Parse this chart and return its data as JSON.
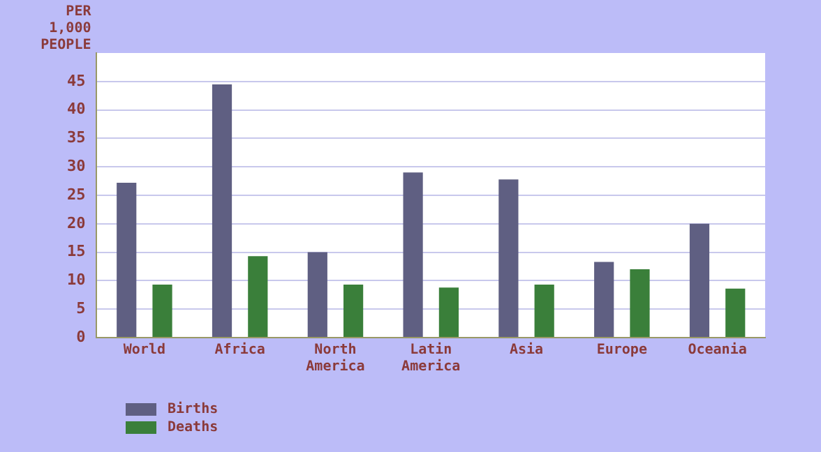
{
  "chart_data": {
    "type": "bar",
    "ylabel": "PER 1,000 PEOPLE",
    "categories": [
      "World",
      "Africa",
      "North America",
      "Latin America",
      "Asia",
      "Europe",
      "Oceania"
    ],
    "series": [
      {
        "name": "Births",
        "color": "#5f5f82",
        "values": [
          27.2,
          44.5,
          15,
          29,
          27.8,
          13.3,
          20
        ]
      },
      {
        "name": "Deaths",
        "color": "#3a7f3a",
        "values": [
          9.3,
          14.3,
          9.3,
          8.8,
          9.3,
          12,
          8.6
        ]
      }
    ],
    "ylim": [
      0,
      50
    ],
    "yticks": [
      0,
      5,
      10,
      15,
      20,
      25,
      30,
      35,
      40,
      45
    ],
    "grid": "y",
    "legend": "bottom left"
  }
}
